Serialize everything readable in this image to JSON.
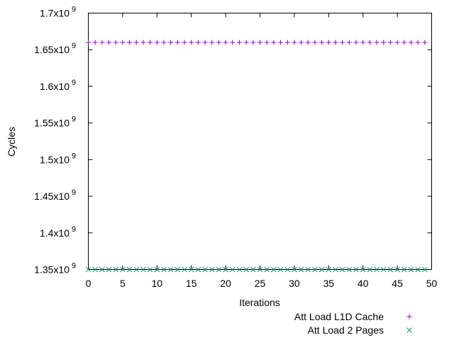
{
  "chart_data": {
    "type": "scatter",
    "title": "",
    "xlabel": "Iterations",
    "ylabel": "Cycles",
    "xlim": [
      0,
      50
    ],
    "ylim": [
      1350000000,
      1700000000
    ],
    "grid": false,
    "legend_position": "bottom-right outside",
    "x_ticks": [
      {
        "value": 0,
        "label": "0"
      },
      {
        "value": 5,
        "label": "5"
      },
      {
        "value": 10,
        "label": "10"
      },
      {
        "value": 15,
        "label": "15"
      },
      {
        "value": 20,
        "label": "20"
      },
      {
        "value": 25,
        "label": "25"
      },
      {
        "value": 30,
        "label": "30"
      },
      {
        "value": 35,
        "label": "35"
      },
      {
        "value": 40,
        "label": "40"
      },
      {
        "value": 45,
        "label": "45"
      },
      {
        "value": 50,
        "label": "50"
      }
    ],
    "y_ticks": [
      {
        "value": 1350000000,
        "mantissa": "1.35x10",
        "exp": "9"
      },
      {
        "value": 1400000000,
        "mantissa": "1.4x10",
        "exp": "9"
      },
      {
        "value": 1450000000,
        "mantissa": "1.45x10",
        "exp": "9"
      },
      {
        "value": 1500000000,
        "mantissa": "1.5x10",
        "exp": "9"
      },
      {
        "value": 1550000000,
        "mantissa": "1.55x10",
        "exp": "9"
      },
      {
        "value": 1600000000,
        "mantissa": "1.6x10",
        "exp": "9"
      },
      {
        "value": 1650000000,
        "mantissa": "1.65x10",
        "exp": "9"
      },
      {
        "value": 1700000000,
        "mantissa": "1.7x10",
        "exp": "9"
      }
    ],
    "series": [
      {
        "name": "Att Load L1D Cache",
        "marker": "plus",
        "color": "#9400d3",
        "x": [
          0,
          1,
          2,
          3,
          4,
          5,
          6,
          7,
          8,
          9,
          10,
          11,
          12,
          13,
          14,
          15,
          16,
          17,
          18,
          19,
          20,
          21,
          22,
          23,
          24,
          25,
          26,
          27,
          28,
          29,
          30,
          31,
          32,
          33,
          34,
          35,
          36,
          37,
          38,
          39,
          40,
          41,
          42,
          43,
          44,
          45,
          46,
          47,
          48,
          49
        ],
        "y": [
          1660000000,
          1660000000,
          1660000000,
          1660000000,
          1660000000,
          1660000000,
          1660000000,
          1660000000,
          1660000000,
          1660000000,
          1660000000,
          1660000000,
          1660000000,
          1660000000,
          1660000000,
          1660000000,
          1660000000,
          1660000000,
          1660000000,
          1660000000,
          1660000000,
          1660000000,
          1660000000,
          1660000000,
          1660000000,
          1660000000,
          1660000000,
          1660000000,
          1660000000,
          1660000000,
          1660000000,
          1660000000,
          1660000000,
          1660000000,
          1660000000,
          1660000000,
          1660000000,
          1660000000,
          1660000000,
          1660000000,
          1660000000,
          1660000000,
          1660000000,
          1660000000,
          1660000000,
          1660000000,
          1660000000,
          1660000000,
          1660000000,
          1660000000
        ]
      },
      {
        "name": "Att Load 2 Pages",
        "marker": "cross",
        "color": "#009e73",
        "x": [
          0,
          1,
          2,
          3,
          4,
          5,
          6,
          7,
          8,
          9,
          10,
          11,
          12,
          13,
          14,
          15,
          16,
          17,
          18,
          19,
          20,
          21,
          22,
          23,
          24,
          25,
          26,
          27,
          28,
          29,
          30,
          31,
          32,
          33,
          34,
          35,
          36,
          37,
          38,
          39,
          40,
          41,
          42,
          43,
          44,
          45,
          46,
          47,
          48,
          49
        ],
        "y": [
          1350000000,
          1350000000,
          1350000000,
          1350000000,
          1350000000,
          1350000000,
          1350000000,
          1350000000,
          1350000000,
          1350000000,
          1350000000,
          1350000000,
          1350000000,
          1350000000,
          1350000000,
          1350000000,
          1350000000,
          1350000000,
          1350000000,
          1350000000,
          1350000000,
          1350000000,
          1350000000,
          1350000000,
          1350000000,
          1350000000,
          1350000000,
          1350000000,
          1350000000,
          1350000000,
          1350000000,
          1350000000,
          1350000000,
          1350000000,
          1350000000,
          1350000000,
          1350000000,
          1350000000,
          1350000000,
          1350000000,
          1350000000,
          1350000000,
          1350000000,
          1350000000,
          1350000000,
          1350000000,
          1350000000,
          1350000000,
          1350000000,
          1350000000
        ]
      }
    ]
  }
}
